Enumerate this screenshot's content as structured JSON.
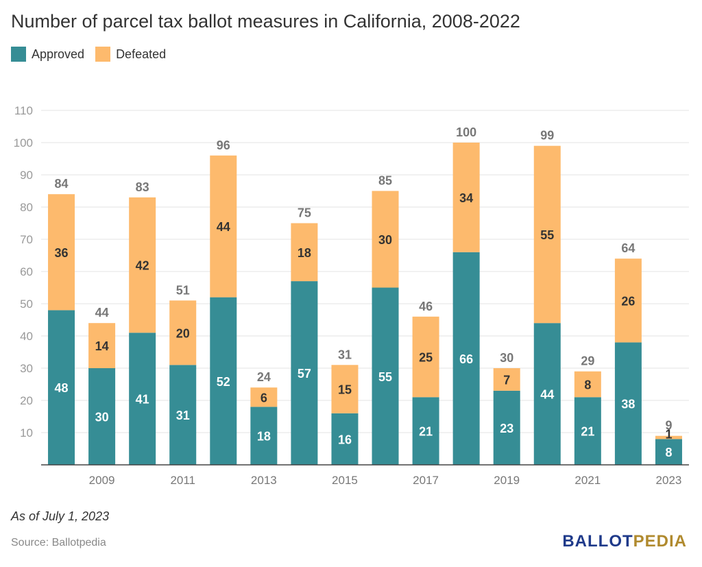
{
  "title": "Number of parcel tax ballot measures in California, 2008-2022",
  "legend": [
    {
      "label": "Approved",
      "color": "#368d95"
    },
    {
      "label": "Defeated",
      "color": "#fdba6d"
    }
  ],
  "note": "As of July 1, 2023",
  "source": "Source: Ballotpedia",
  "logo": {
    "part1": "BALLOT",
    "part2": "PEDIA"
  },
  "chart_data": {
    "type": "bar",
    "stacked": true,
    "categories": [
      "2008",
      "2009",
      "2010",
      "2011",
      "2012",
      "2013",
      "2014",
      "2015",
      "2016",
      "2017",
      "2018",
      "2019",
      "2020",
      "2021",
      "2022",
      "2023"
    ],
    "x_tick_labels": [
      "",
      "2009",
      "",
      "2011",
      "",
      "2013",
      "",
      "2015",
      "",
      "2017",
      "",
      "2019",
      "",
      "2021",
      "",
      "2023"
    ],
    "series": [
      {
        "name": "Approved",
        "color": "#368d95",
        "values": [
          48,
          30,
          41,
          31,
          52,
          18,
          57,
          16,
          55,
          21,
          66,
          23,
          44,
          21,
          38,
          8
        ]
      },
      {
        "name": "Defeated",
        "color": "#fdba6d",
        "values": [
          36,
          14,
          42,
          20,
          44,
          6,
          18,
          15,
          30,
          25,
          34,
          7,
          55,
          8,
          26,
          1
        ]
      }
    ],
    "totals": [
      84,
      44,
      83,
      51,
      96,
      24,
      75,
      31,
      85,
      46,
      100,
      30,
      99,
      29,
      64,
      9
    ],
    "ylim": [
      0,
      110
    ],
    "yticks": [
      10,
      20,
      30,
      40,
      50,
      60,
      70,
      80,
      90,
      100,
      110
    ],
    "grid": true,
    "legend_position": "top-left"
  }
}
